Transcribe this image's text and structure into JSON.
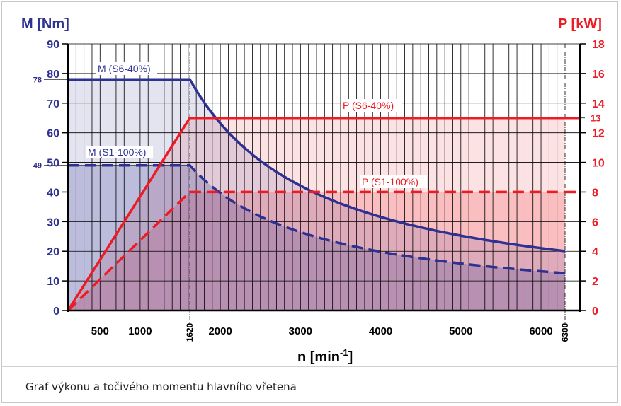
{
  "chart_data": {
    "type": "line",
    "left_axis_label": "M [Nm]",
    "right_axis_label": "P [kW]",
    "xlabel_base": "n [min",
    "xlabel_sup": "-1",
    "xlabel_end": "]",
    "x_range": [
      100,
      6300
    ],
    "left_ylim": [
      0,
      90
    ],
    "right_ylim": [
      0,
      18
    ],
    "x_ticks": [
      "500",
      "1000",
      "2000",
      "3000",
      "4000",
      "5000",
      "6000"
    ],
    "x_ticks_rotated": [
      "1620",
      "6300"
    ],
    "left_ticks": [
      "0",
      "10",
      "20",
      "30",
      "40",
      "50",
      "60",
      "70",
      "80",
      "90"
    ],
    "right_ticks": [
      "0",
      "2",
      "4",
      "6",
      "8",
      "10",
      "12",
      "14",
      "16",
      "18"
    ],
    "extra_left_labels": [
      "78",
      "49"
    ],
    "extra_right_labels": [
      "13"
    ],
    "grid": true,
    "series": [
      {
        "name": "M (S6-40%)",
        "axis": "left",
        "style": "solid",
        "color": "#2e3192",
        "x": [
          100,
          1620,
          2000,
          2500,
          3000,
          3500,
          4000,
          4500,
          5000,
          5500,
          6000,
          6300
        ],
        "y": [
          78,
          78,
          63.2,
          50.5,
          42.1,
          36.1,
          31.6,
          28.1,
          25.3,
          23.0,
          21.1,
          20.1
        ]
      },
      {
        "name": "M (S1-100%)",
        "axis": "left",
        "style": "dashed",
        "color": "#2e3192",
        "x": [
          100,
          1620,
          2000,
          2500,
          3000,
          3500,
          4000,
          4500,
          5000,
          5500,
          6000,
          6300
        ],
        "y": [
          49,
          49,
          39.7,
          31.8,
          26.5,
          22.7,
          19.8,
          17.6,
          15.9,
          14.4,
          13.2,
          12.6
        ]
      },
      {
        "name": "P (S6-40%)",
        "axis": "right",
        "style": "solid",
        "color": "#ed1c24",
        "x": [
          100,
          1620,
          6300
        ],
        "y": [
          0,
          13,
          13
        ]
      },
      {
        "name": "P (S1-100%)",
        "axis": "right",
        "style": "dashed",
        "color": "#ed1c24",
        "x": [
          100,
          1620,
          6300
        ],
        "y": [
          0,
          8,
          8
        ]
      }
    ]
  },
  "caption": "Graf výkonu a točivého momentu hlavního vřetena",
  "colors": {
    "blue": "#2e3192",
    "red": "#ed1c24"
  }
}
